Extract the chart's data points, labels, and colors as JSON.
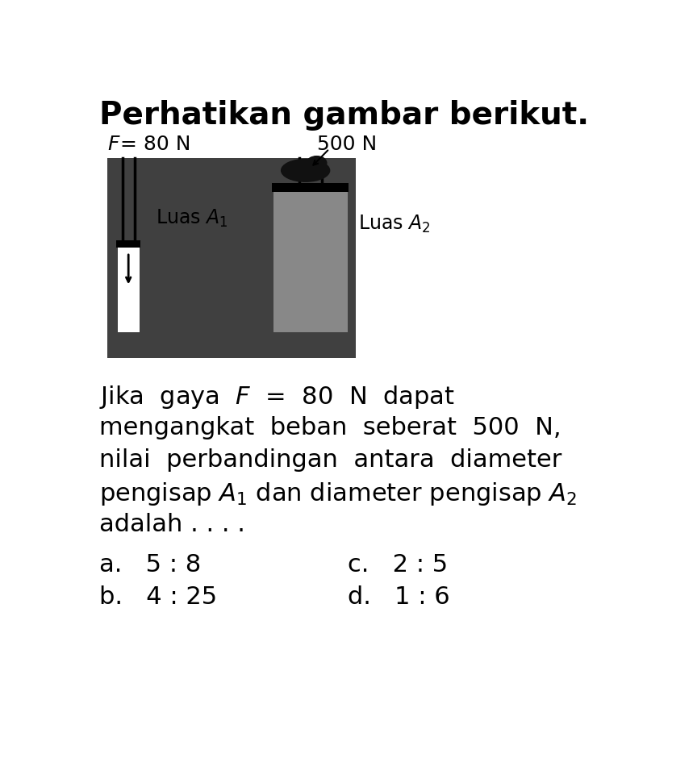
{
  "title": "Perhatikan gambar berikut.",
  "title_fontsize": 28,
  "bg_color": "#ffffff",
  "black": "#000000",
  "white": "#ffffff",
  "dark_gray": "#404040",
  "mid_gray": "#888888",
  "question_line1": "Jika  gaya  $F$  =  80  N  dapat",
  "question_line2": "mengangkat  beban  seberat  500  N,",
  "question_line3": "nilai  perbandingan  antara  diameter",
  "question_line4": "pengisap $A_1$ dan diameter pengisap $A_2$",
  "question_line5": "adalah . . . .",
  "option_a": "a.   5 : 8",
  "option_b": "b.   4 : 25",
  "option_c": "c.   2 : 5",
  "option_d": "d.   1 : 6",
  "luas_a1": "Luas $A_1$",
  "luas_a2": "Luas $A_2$"
}
